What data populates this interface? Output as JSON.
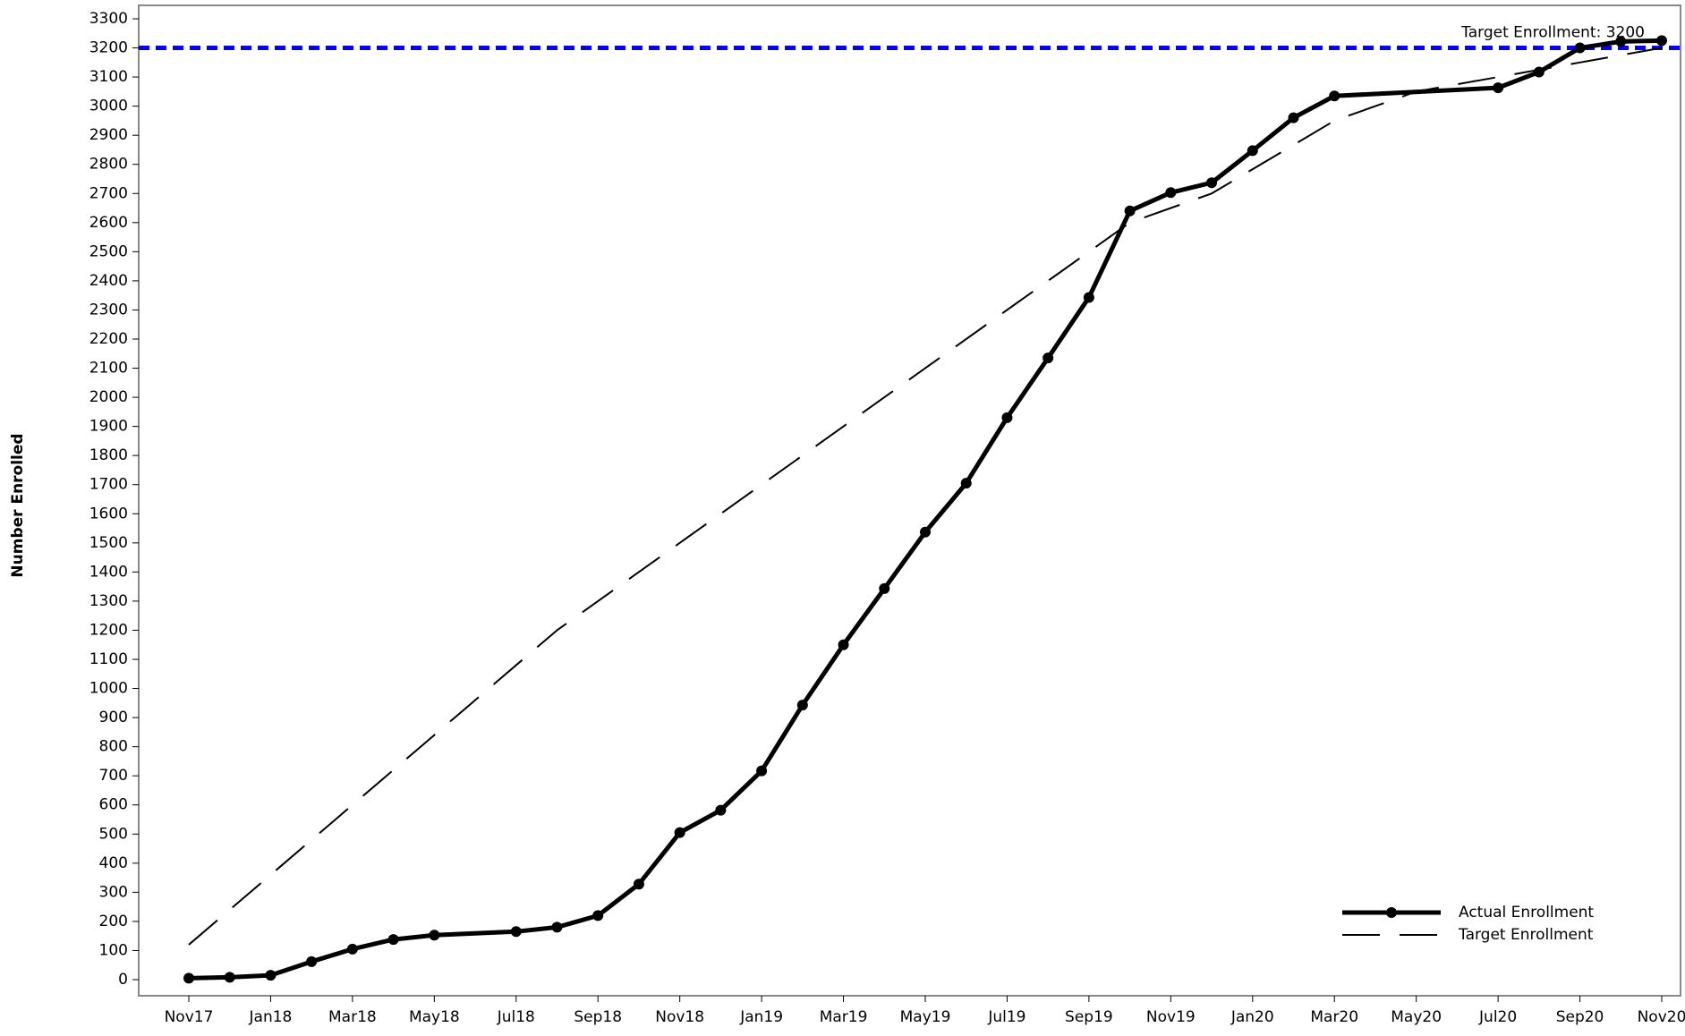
{
  "chart_data": {
    "type": "line",
    "ylabel": "Number Enrolled",
    "xlim": [
      "Nov17",
      "Nov20"
    ],
    "xticks": [
      "Nov17",
      "Jan18",
      "Mar18",
      "May18",
      "Jul18",
      "Sep18",
      "Nov18",
      "Jan19",
      "Mar19",
      "May19",
      "Jul19",
      "Sep19",
      "Nov19",
      "Jan20",
      "Mar20",
      "May20",
      "Jul20",
      "Sep20",
      "Nov20"
    ],
    "ylim": [
      0,
      3300
    ],
    "yticks": [
      0,
      100,
      200,
      300,
      400,
      500,
      600,
      700,
      800,
      900,
      1000,
      1100,
      1200,
      1300,
      1400,
      1500,
      1600,
      1700,
      1800,
      1900,
      2000,
      2100,
      2200,
      2300,
      2400,
      2500,
      2600,
      2700,
      2800,
      2900,
      3000,
      3100,
      3200,
      3300
    ],
    "reference_line": {
      "value": 3200,
      "label": "Target Enrollment: 3200",
      "color": "#0000ff"
    },
    "legend": "lower right",
    "series": [
      {
        "name": "Actual Enrollment",
        "color": "#000000",
        "style": "solid",
        "markers": true,
        "x": [
          "Nov17",
          "Dec17",
          "Jan18",
          "Feb18",
          "Mar18",
          "Apr18",
          "May18",
          "Jul18",
          "Aug18",
          "Sep18",
          "Oct18",
          "Nov18",
          "Dec18",
          "Jan19",
          "Feb19",
          "Mar19",
          "Apr19",
          "May19",
          "Jun19",
          "Jul19",
          "Aug19",
          "Sep19",
          "Oct19",
          "Nov19",
          "Dec19",
          "Jan20",
          "Feb20",
          "Mar20",
          "Jul20",
          "Aug20",
          "Sep20",
          "Oct20",
          "Nov20"
        ],
        "values": [
          5,
          8,
          15,
          62,
          105,
          138,
          153,
          165,
          180,
          220,
          328,
          505,
          582,
          717,
          943,
          1150,
          1343,
          1537,
          1705,
          1930,
          2135,
          2343,
          2640,
          2703,
          2737,
          2847,
          2960,
          3035,
          3063,
          3117,
          3200,
          3222,
          3225
        ]
      },
      {
        "name": "Target Enrollment",
        "color": "#000000",
        "style": "dashed",
        "markers": false,
        "x": [
          "Nov17",
          "Aug18",
          "Oct19",
          "Dec19",
          "Mar20",
          "May20",
          "Jul20",
          "Sep20",
          "Nov20"
        ],
        "values": [
          120,
          1200,
          2600,
          2700,
          2950,
          3050,
          3100,
          3150,
          3200
        ]
      }
    ]
  }
}
